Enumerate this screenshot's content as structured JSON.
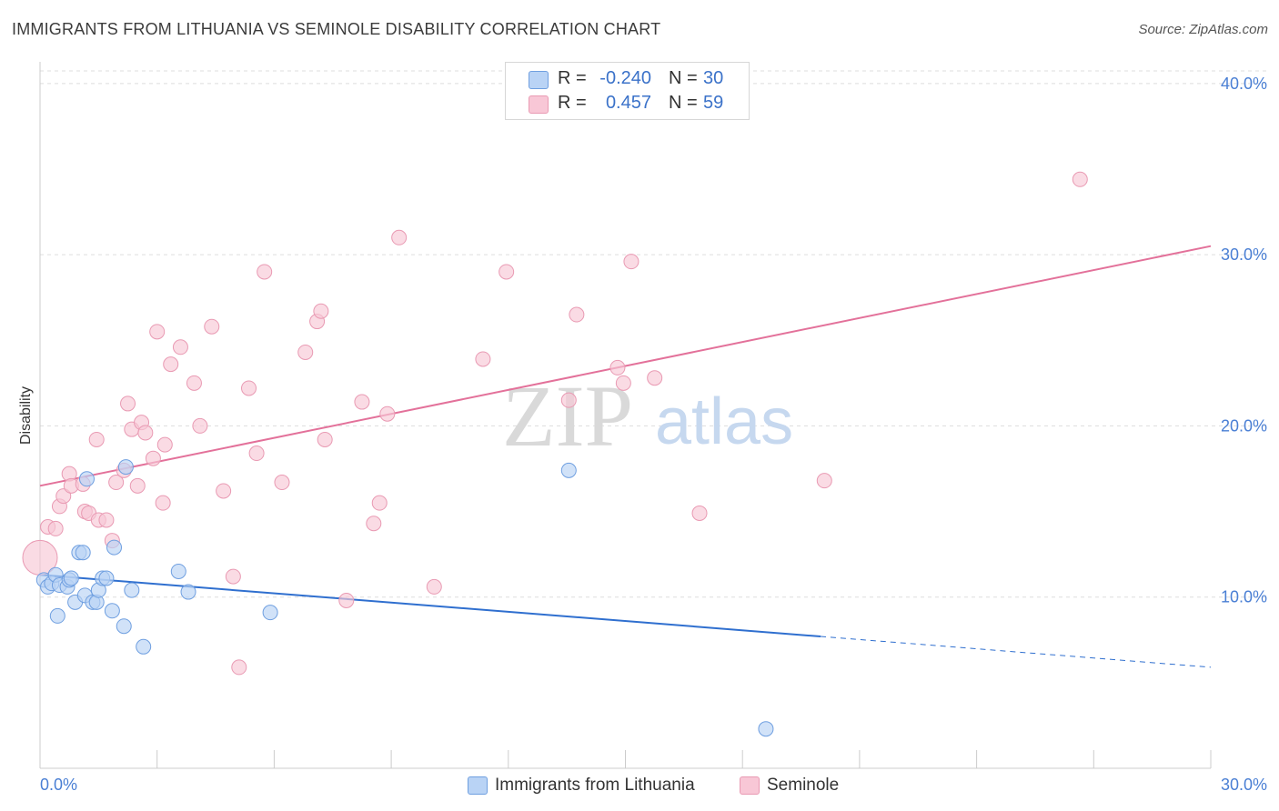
{
  "header": {
    "title": "IMMIGRANTS FROM LITHUANIA VS SEMINOLE DISABILITY CORRELATION CHART",
    "source": "Source: ZipAtlas.com"
  },
  "watermark": {
    "zip": "ZIP",
    "atlas": "atlas"
  },
  "legend": {
    "rows": [
      {
        "r_label": "R =",
        "r_value": "-0.240",
        "n_label": "N =",
        "n_value": "30"
      },
      {
        "r_label": "R =",
        "r_value": "0.457",
        "n_label": "N =",
        "n_value": "59"
      }
    ]
  },
  "bottom_legend": {
    "lithuania": "Immigrants from Lithuania",
    "seminole": "Seminole"
  },
  "colors": {
    "lithuania_fill": "#b9d3f5",
    "lithuania_stroke": "#6f9fe0",
    "lithuania_line": "#2f6fcf",
    "seminole_fill": "#f8c7d6",
    "seminole_stroke": "#e99ab3",
    "seminole_line": "#e3719a",
    "tick_text": "#4a7fd4",
    "grid": "#dddddd"
  },
  "chart_data": {
    "type": "scatter",
    "title": "IMMIGRANTS FROM LITHUANIA VS SEMINOLE DISABILITY CORRELATION CHART",
    "xlabel": "",
    "ylabel": "Disability",
    "xlim": [
      0,
      30
    ],
    "ylim": [
      0,
      41
    ],
    "x_tick_labels": [
      "0.0%",
      "30.0%"
    ],
    "y_ticks": [
      10,
      20,
      30,
      40
    ],
    "y_tick_labels": [
      "10.0%",
      "20.0%",
      "30.0%",
      "40.0%"
    ],
    "grid": "horizontal dashed",
    "legend_position": "top-center",
    "series": [
      {
        "name": "Immigrants from Lithuania",
        "R": -0.24,
        "N": 30,
        "points": [
          [
            0.1,
            11.0
          ],
          [
            0.2,
            10.6
          ],
          [
            0.3,
            10.8
          ],
          [
            0.4,
            11.3
          ],
          [
            0.45,
            8.9
          ],
          [
            0.5,
            10.7
          ],
          [
            0.7,
            10.6
          ],
          [
            0.75,
            11.0
          ],
          [
            0.8,
            11.1
          ],
          [
            0.9,
            9.7
          ],
          [
            1.0,
            12.6
          ],
          [
            1.1,
            12.6
          ],
          [
            1.15,
            10.1
          ],
          [
            1.2,
            16.9
          ],
          [
            1.35,
            9.7
          ],
          [
            1.45,
            9.7
          ],
          [
            1.5,
            10.4
          ],
          [
            1.6,
            11.1
          ],
          [
            1.7,
            11.1
          ],
          [
            1.85,
            9.2
          ],
          [
            1.9,
            12.9
          ],
          [
            2.15,
            8.3
          ],
          [
            2.2,
            17.6
          ],
          [
            2.35,
            10.4
          ],
          [
            2.65,
            7.1
          ],
          [
            3.55,
            11.5
          ],
          [
            3.8,
            10.3
          ],
          [
            5.9,
            9.1
          ],
          [
            13.55,
            17.4
          ],
          [
            18.6,
            2.3
          ]
        ],
        "trend": {
          "x": [
            0,
            20
          ],
          "y": [
            11.3,
            7.7
          ],
          "dashed_to": [
            30,
            5.9
          ]
        }
      },
      {
        "name": "Seminole",
        "R": 0.457,
        "N": 59,
        "points": [
          [
            0.0,
            12.3
          ],
          [
            0.2,
            14.1
          ],
          [
            0.4,
            14.0
          ],
          [
            0.5,
            15.3
          ],
          [
            0.6,
            15.9
          ],
          [
            0.75,
            17.2
          ],
          [
            0.8,
            16.5
          ],
          [
            1.1,
            16.6
          ],
          [
            1.15,
            15.0
          ],
          [
            1.25,
            14.9
          ],
          [
            1.45,
            19.2
          ],
          [
            1.5,
            14.5
          ],
          [
            1.7,
            14.5
          ],
          [
            1.85,
            13.3
          ],
          [
            1.95,
            16.7
          ],
          [
            2.15,
            17.4
          ],
          [
            2.25,
            21.3
          ],
          [
            2.35,
            19.8
          ],
          [
            2.5,
            16.5
          ],
          [
            2.6,
            20.2
          ],
          [
            2.7,
            19.6
          ],
          [
            2.9,
            18.1
          ],
          [
            3.0,
            25.5
          ],
          [
            3.15,
            15.5
          ],
          [
            3.2,
            18.9
          ],
          [
            3.35,
            23.6
          ],
          [
            3.6,
            24.6
          ],
          [
            3.95,
            22.5
          ],
          [
            4.1,
            20.0
          ],
          [
            4.4,
            25.8
          ],
          [
            4.7,
            16.2
          ],
          [
            4.95,
            11.2
          ],
          [
            5.1,
            5.9
          ],
          [
            5.35,
            22.2
          ],
          [
            5.55,
            18.4
          ],
          [
            5.75,
            29.0
          ],
          [
            6.2,
            16.7
          ],
          [
            6.8,
            24.3
          ],
          [
            7.1,
            26.1
          ],
          [
            7.2,
            26.7
          ],
          [
            7.3,
            19.2
          ],
          [
            7.85,
            9.8
          ],
          [
            8.25,
            21.4
          ],
          [
            8.55,
            14.3
          ],
          [
            8.7,
            15.5
          ],
          [
            8.9,
            20.7
          ],
          [
            9.2,
            31.0
          ],
          [
            10.1,
            10.6
          ],
          [
            11.35,
            23.9
          ],
          [
            11.95,
            29.0
          ],
          [
            13.55,
            21.5
          ],
          [
            13.75,
            26.5
          ],
          [
            14.8,
            23.4
          ],
          [
            14.95,
            22.5
          ],
          [
            15.15,
            29.6
          ],
          [
            15.75,
            22.8
          ],
          [
            16.9,
            14.9
          ],
          [
            20.1,
            16.8
          ],
          [
            26.65,
            34.4
          ]
        ],
        "trend": {
          "x": [
            0,
            30
          ],
          "y": [
            16.5,
            30.5
          ]
        }
      }
    ]
  }
}
